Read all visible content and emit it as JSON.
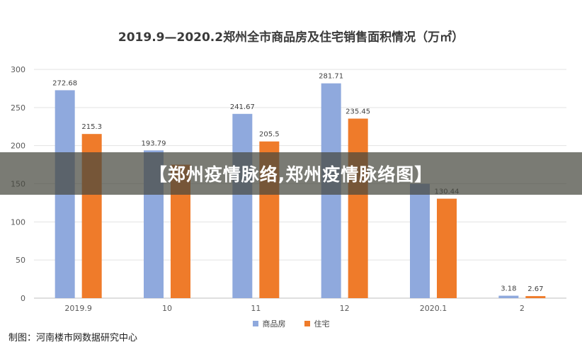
{
  "chart_data": {
    "type": "bar",
    "title": "2019.9—2020.2郑州全市商品房及住宅销售面积情况（万㎡）",
    "categories": [
      "2019.9",
      "10",
      "11",
      "12",
      "2020.1",
      "2"
    ],
    "ylim": [
      0,
      300
    ],
    "yticks": [
      0,
      50,
      100,
      150,
      200,
      250,
      300
    ],
    "grid": true,
    "legend_position": "bottom",
    "series": [
      {
        "name": "商品房",
        "color": "#8fa9dd",
        "values": [
          272.68,
          193.79,
          241.67,
          281.71,
          150,
          3.18
        ],
        "labels": [
          "272.68",
          "193.79",
          "241.67",
          "281.71",
          "",
          "3.18"
        ]
      },
      {
        "name": "住宅",
        "color": "#ef7b2a",
        "values": [
          215.3,
          175,
          205.5,
          235.45,
          130.44,
          2.67
        ],
        "labels": [
          "215.3",
          "",
          "205.5",
          "235.45",
          "130.44",
          "2.67"
        ]
      }
    ]
  },
  "overlay": {
    "banner_text": "【郑州疫情脉络,郑州疫情脉络图】",
    "credit_text": "制图：河南楼市网数据研究中心"
  }
}
